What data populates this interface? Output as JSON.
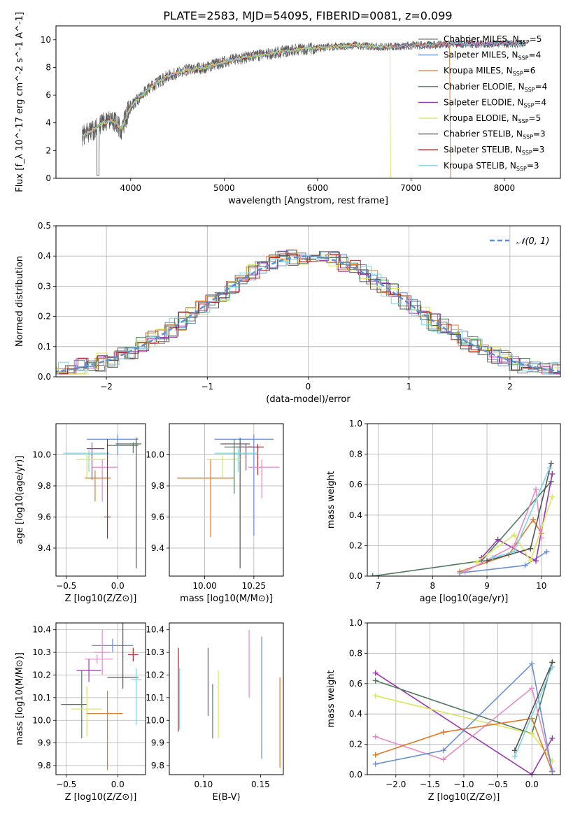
{
  "figure": {
    "title": "PLATE=2583, MJD=54095, FIBERID=0081, z=0.099"
  },
  "legend_items": [
    {
      "name": "Chabrier MILES",
      "nssp": "5",
      "color": "#7a7a7a"
    },
    {
      "name": "Salpeter MILES",
      "nssp": "4",
      "color": "#6a8fd6"
    },
    {
      "name": "Kroupa MILES",
      "nssp": "6",
      "color": "#e07a2b"
    },
    {
      "name": "Chabrier ELODIE",
      "nssp": "4",
      "color": "#4f7a5c"
    },
    {
      "name": "Salpeter ELODIE",
      "nssp": "4",
      "color": "#9b35b0"
    },
    {
      "name": "Kroupa ELODIE",
      "nssp": "5",
      "color": "#d8e85a"
    },
    {
      "name": "Chabrier STELIB",
      "nssp": "3",
      "color": "#555555"
    },
    {
      "name": "Salpeter STELIB",
      "nssp": "3",
      "color": "#b0252a"
    },
    {
      "name": "Kroupa STELIB",
      "nssp": "3",
      "color": "#7fd4e3"
    }
  ],
  "chart_data": [
    {
      "type": "line",
      "xlabel": "wavelength [Angstrom, rest frame]",
      "ylabel": "Flux [f_λ 10^-17 erg cm^-2 s^-1 A^-1]",
      "xlim": [
        3200,
        8600
      ],
      "ylim": [
        0,
        11
      ],
      "xticks": [
        4000,
        5000,
        6000,
        7000,
        8000
      ],
      "yticks": [
        0,
        2,
        4,
        6,
        8,
        10
      ],
      "grid": false,
      "legend": "right",
      "spectrum_x": [
        3500,
        3600,
        3700,
        3800,
        3900,
        4000,
        4200,
        4400,
        4600,
        4800,
        5000,
        5200,
        5400,
        5600,
        5800,
        6000,
        6200,
        6400,
        6600,
        6800,
        7000,
        7200,
        7400
      ],
      "spectrum_y": [
        3.1,
        3.5,
        4.0,
        4.2,
        3.6,
        5.2,
        6.5,
        7.4,
        7.8,
        8.0,
        8.4,
        8.7,
        8.9,
        9.1,
        9.3,
        9.4,
        9.5,
        9.6,
        9.5,
        9.5,
        9.6,
        9.6,
        9.7
      ]
    },
    {
      "type": "histogram",
      "xlabel": "(data-model)/error",
      "ylabel": "Normed distribution",
      "xlim": [
        -2.5,
        2.5
      ],
      "ylim": [
        0,
        0.5
      ],
      "xticks": [
        -2,
        -1,
        0,
        1,
        2
      ],
      "yticks": [
        0.0,
        0.1,
        0.2,
        0.3,
        0.4,
        0.5
      ],
      "grid": true,
      "legend": "top-right",
      "reference_curve": "N(0,1)",
      "bin_width": 0.1
    },
    {
      "type": "scatter",
      "xlabel": "Z [log10(Z/Z⊙)]",
      "ylabel": "age [log10(age/yr)]",
      "xlim": [
        -0.6,
        0.27
      ],
      "ylim": [
        9.22,
        10.2
      ],
      "xticks": [
        -0.5,
        0.0
      ],
      "yticks": [
        9.4,
        9.6,
        9.8,
        10.0
      ],
      "grid": true,
      "points": [
        {
          "x": 0.0,
          "y": 10.1,
          "xerr": [
            0.3,
            0.2
          ],
          "yerr": [
            0.1,
            0.03
          ],
          "color": "#6a8fd6"
        },
        {
          "x": 0.18,
          "y": 10.07,
          "xerr": [
            0.2,
            0.05
          ],
          "yerr": [
            0.8,
            0.04
          ],
          "color": "#555555"
        },
        {
          "x": 0.15,
          "y": 10.06,
          "xerr": [
            0.25,
            0.05
          ],
          "yerr": [
            0.05,
            0.02
          ],
          "color": "#4f7a5c"
        },
        {
          "x": -0.25,
          "y": 10.04,
          "xerr": [
            0.05,
            0.12
          ],
          "yerr": [
            0.2,
            0.04
          ],
          "color": "#9b35b0"
        },
        {
          "x": -0.28,
          "y": 10.01,
          "xerr": [
            0.25,
            0.2
          ],
          "yerr": [
            0.12,
            0.02
          ],
          "color": "#7fd4e3"
        },
        {
          "x": -0.3,
          "y": 9.97,
          "xerr": [
            0.1,
            0.18
          ],
          "yerr": [
            0.12,
            0.04
          ],
          "color": "#d8e85a"
        },
        {
          "x": -0.15,
          "y": 9.92,
          "xerr": [
            0.1,
            0.15
          ],
          "yerr": [
            0.22,
            0.05
          ],
          "color": "#e68cc5"
        },
        {
          "x": -0.22,
          "y": 9.85,
          "xerr": [
            0.1,
            0.15
          ],
          "yerr": [
            0.15,
            0.05
          ],
          "color": "#e07a2b"
        },
        {
          "x": -0.1,
          "y": 9.6,
          "xerr": [
            0.03,
            0.03
          ],
          "yerr": [
            0.14,
            0.5
          ],
          "color": "#b0252a"
        }
      ]
    },
    {
      "type": "scatter",
      "xlabel": "mass [log10(M/M⊙)]",
      "ylabel": "",
      "xlim": [
        9.82,
        10.4
      ],
      "ylim": [
        9.22,
        10.2
      ],
      "xticks": [
        10.0,
        10.25
      ],
      "yticks": [
        9.4,
        9.6,
        9.8,
        10.0
      ],
      "grid": true,
      "points": [
        {
          "x": 10.25,
          "y": 10.1,
          "xerr": [
            0.2,
            0.1
          ],
          "yerr": [
            0.62,
            0.03
          ],
          "color": "#6a8fd6"
        },
        {
          "x": 10.18,
          "y": 10.07,
          "xerr": [
            0.1,
            0.05
          ],
          "yerr": [
            0.8,
            0.04
          ],
          "color": "#555555"
        },
        {
          "x": 10.21,
          "y": 10.05,
          "xerr": [
            0.05,
            0.03
          ],
          "yerr": [
            0.15,
            0.02
          ],
          "color": "#9b35b0"
        },
        {
          "x": 10.27,
          "y": 10.05,
          "xerr": [
            0.05,
            0.03
          ],
          "yerr": [
            0.18,
            0.02
          ],
          "color": "#b0252a"
        },
        {
          "x": 10.17,
          "y": 10.01,
          "xerr": [
            0.12,
            0.1
          ],
          "yerr": [
            0.12,
            0.03
          ],
          "color": "#7fd4e3"
        },
        {
          "x": 10.09,
          "y": 9.97,
          "xerr": [
            0.08,
            0.1
          ],
          "yerr": [
            0.12,
            0.04
          ],
          "color": "#d8e85a"
        },
        {
          "x": 10.29,
          "y": 9.92,
          "xerr": [
            0.07,
            0.09
          ],
          "yerr": [
            0.2,
            0.05
          ],
          "color": "#e68cc5"
        },
        {
          "x": 10.03,
          "y": 9.85,
          "xerr": [
            0.17,
            0.12
          ],
          "yerr": [
            0.38,
            0.12
          ],
          "color": "#e07a2b"
        },
        {
          "x": 10.15,
          "y": 10.05,
          "xerr": [
            0.05,
            0.05
          ],
          "yerr": [
            0.3,
            0.05
          ],
          "color": "#4f7a5c"
        }
      ]
    },
    {
      "type": "line",
      "xlabel": "age [log10(age/yr)]",
      "ylabel": "mass weight",
      "xlim": [
        6.8,
        10.35
      ],
      "ylim": [
        0,
        1.0
      ],
      "xticks": [
        7,
        8,
        9,
        10
      ],
      "yticks": [
        0.0,
        0.2,
        0.4,
        0.6,
        0.8,
        1.0
      ],
      "grid": true,
      "series": [
        {
          "color": "#4f7a5c",
          "x": [
            6.9,
            8.9,
            10.18
          ],
          "y": [
            0.0,
            0.1,
            0.62
          ]
        },
        {
          "color": "#6a8fd6",
          "x": [
            8.5,
            9.7,
            10.1
          ],
          "y": [
            0.02,
            0.07,
            0.16
          ]
        },
        {
          "color": "#9b35b0",
          "x": [
            8.9,
            9.2,
            9.9,
            10.2
          ],
          "y": [
            0.12,
            0.24,
            0.1,
            0.67
          ]
        },
        {
          "color": "#d8e85a",
          "x": [
            8.8,
            9.5,
            9.8,
            10.2
          ],
          "y": [
            0.09,
            0.27,
            0.1,
            0.52
          ]
        },
        {
          "color": "#e07a2b",
          "x": [
            8.5,
            9.4,
            9.85,
            10.0
          ],
          "y": [
            0.03,
            0.14,
            0.37,
            0.28
          ]
        },
        {
          "color": "#e68cc5",
          "x": [
            8.6,
            9.5,
            9.9,
            10.0
          ],
          "y": [
            0.03,
            0.2,
            0.57,
            0.25
          ]
        },
        {
          "color": "#555555",
          "x": [
            9.0,
            9.8,
            10.18
          ],
          "y": [
            0.1,
            0.18,
            0.74
          ]
        },
        {
          "color": "#7fd4e3",
          "x": [
            9.1,
            9.5,
            10.15
          ],
          "y": [
            0.12,
            0.16,
            0.71
          ]
        }
      ]
    },
    {
      "type": "scatter",
      "xlabel": "Z [log10(Z/Z⊙)]",
      "ylabel": "mass [log10(M/M⊙)]",
      "xlim": [
        -0.6,
        0.27
      ],
      "ylim": [
        9.76,
        10.43
      ],
      "xticks": [
        -0.5,
        0.0
      ],
      "yticks": [
        9.8,
        9.9,
        10.0,
        10.1,
        10.2,
        10.3,
        10.4
      ],
      "grid": true,
      "points": [
        {
          "x": -0.05,
          "y": 10.33,
          "xerr": [
            0.2,
            0.2
          ],
          "yerr": [
            0.03,
            0.03
          ],
          "color": "#6a8fd6"
        },
        {
          "x": -0.15,
          "y": 10.3,
          "xerr": [
            0.08,
            0.08
          ],
          "yerr": [
            0.1,
            0.1
          ],
          "color": "#e68cc5"
        },
        {
          "x": 0.15,
          "y": 10.29,
          "xerr": [
            0.05,
            0.05
          ],
          "yerr": [
            0.03,
            0.03
          ],
          "color": "#b0252a"
        },
        {
          "x": -0.2,
          "y": 10.27,
          "xerr": [
            0.12,
            0.15
          ],
          "yerr": [
            0.02,
            0.02
          ],
          "color": "#e68cc5"
        },
        {
          "x": -0.28,
          "y": 10.22,
          "xerr": [
            0.12,
            0.12
          ],
          "yerr": [
            0.05,
            0.05
          ],
          "color": "#9b35b0"
        },
        {
          "x": 0.05,
          "y": 10.19,
          "xerr": [
            0.15,
            0.15
          ],
          "yerr": [
            0.05,
            0.25
          ],
          "color": "#555555"
        },
        {
          "x": -0.35,
          "y": 10.07,
          "xerr": [
            0.2,
            0.05
          ],
          "yerr": [
            0.15,
            0.15
          ],
          "color": "#4f7a5c"
        },
        {
          "x": -0.3,
          "y": 10.05,
          "xerr": [
            0.15,
            0.15
          ],
          "yerr": [
            0.12,
            0.1
          ],
          "color": "#d8e85a"
        },
        {
          "x": -0.1,
          "y": 10.03,
          "xerr": [
            0.2,
            0.15
          ],
          "yerr": [
            0.25,
            0.1
          ],
          "color": "#e07a2b"
        },
        {
          "x": 0.18,
          "y": 10.18,
          "xerr": [
            0.05,
            0.05
          ],
          "yerr": [
            0.2,
            0.05
          ],
          "color": "#7fd4e3"
        }
      ]
    },
    {
      "type": "scatter",
      "xlabel": "E(B-V)",
      "ylabel": "",
      "xlim": [
        0.07,
        0.17
      ],
      "ylim": [
        9.76,
        10.43
      ],
      "xticks": [
        0.1,
        0.15
      ],
      "yticks": [
        9.8,
        9.9,
        10.0,
        10.1,
        10.2,
        10.3,
        10.4
      ],
      "grid": false,
      "points": [
        {
          "x": 0.078,
          "y": 10.13,
          "yerr": [
            0.18,
            0.19
          ],
          "color": "#b0252a"
        },
        {
          "x": 0.079,
          "y": 10.08,
          "yerr": [
            0.12,
            0.15
          ],
          "color": "#7fd4e3"
        },
        {
          "x": 0.104,
          "y": 10.17,
          "yerr": [
            0.15,
            0.15
          ],
          "color": "#9b35b0"
        },
        {
          "x": 0.108,
          "y": 10.04,
          "yerr": [
            0.12,
            0.12
          ],
          "color": "#4f7a5c"
        },
        {
          "x": 0.113,
          "y": 10.07,
          "yerr": [
            0.15,
            0.15
          ],
          "color": "#d8e85a"
        },
        {
          "x": 0.14,
          "y": 10.25,
          "yerr": [
            0.15,
            0.15
          ],
          "color": "#e68cc5"
        },
        {
          "x": 0.151,
          "y": 10.1,
          "yerr": [
            0.27,
            0.27
          ],
          "color": "#6a8fd6"
        },
        {
          "x": 0.167,
          "y": 9.99,
          "yerr": [
            0.2,
            0.2
          ],
          "color": "#e07a2b"
        }
      ]
    },
    {
      "type": "line",
      "xlabel": "Z [log10(Z/Z⊙)]",
      "ylabel": "mass weight",
      "xlim": [
        -2.42,
        0.42
      ],
      "ylim": [
        0,
        1.0
      ],
      "xticks": [
        -2.0,
        -1.5,
        -1.0,
        -0.5,
        0.0
      ],
      "yticks": [
        0.0,
        0.2,
        0.4,
        0.6,
        0.8,
        1.0
      ],
      "grid": true,
      "series": [
        {
          "color": "#9b35b0",
          "x": [
            -2.3,
            0.0,
            0.3
          ],
          "y": [
            0.67,
            0.0,
            0.24
          ]
        },
        {
          "color": "#4f7a5c",
          "x": [
            -2.3,
            0.0,
            0.3
          ],
          "y": [
            0.62,
            0.27,
            0.74
          ]
        },
        {
          "color": "#d8e85a",
          "x": [
            -2.3,
            0.0,
            0.3
          ],
          "y": [
            0.52,
            0.27,
            0.09
          ]
        },
        {
          "color": "#e68cc5",
          "x": [
            -2.3,
            -1.3,
            0.0,
            0.3
          ],
          "y": [
            0.25,
            0.1,
            0.57,
            0.03
          ]
        },
        {
          "color": "#e07a2b",
          "x": [
            -2.3,
            -1.3,
            0.0,
            0.3
          ],
          "y": [
            0.13,
            0.28,
            0.37,
            0.02
          ]
        },
        {
          "color": "#6a8fd6",
          "x": [
            -2.3,
            -1.3,
            0.0,
            0.3
          ],
          "y": [
            0.07,
            0.16,
            0.73,
            0.02
          ]
        },
        {
          "color": "#555555",
          "x": [
            -0.25,
            0.3
          ],
          "y": [
            0.16,
            0.74
          ]
        },
        {
          "color": "#7fd4e3",
          "x": [
            -0.25,
            0.3
          ],
          "y": [
            0.12,
            0.71
          ]
        }
      ]
    }
  ]
}
